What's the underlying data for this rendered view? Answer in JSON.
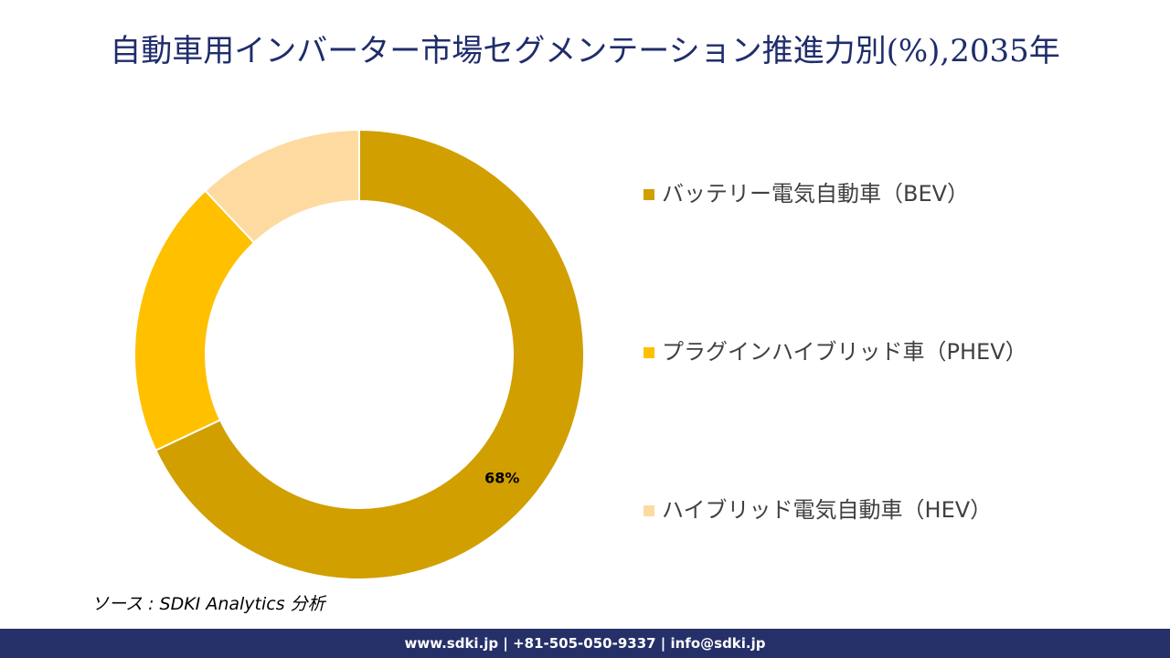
{
  "chart_data": {
    "type": "donut",
    "title": "自動車用インバーター市場セグメンテーション推進力別(%),2035年",
    "categories": [
      "バッテリー電気自動車（BEV）",
      "プラグインハイブリッド車（PHEV）",
      "ハイブリッド電気自動車（HEV）"
    ],
    "values": [
      68,
      20,
      12
    ],
    "value_labels": [
      "68%",
      null,
      null
    ],
    "colors": [
      "#d19f00",
      "#ffc000",
      "#fddba0"
    ],
    "source": "ソース : SDKI Analytics 分析",
    "footer": "www.sdki.jp | +81-505-050-9337 | info@sdki.jp"
  }
}
